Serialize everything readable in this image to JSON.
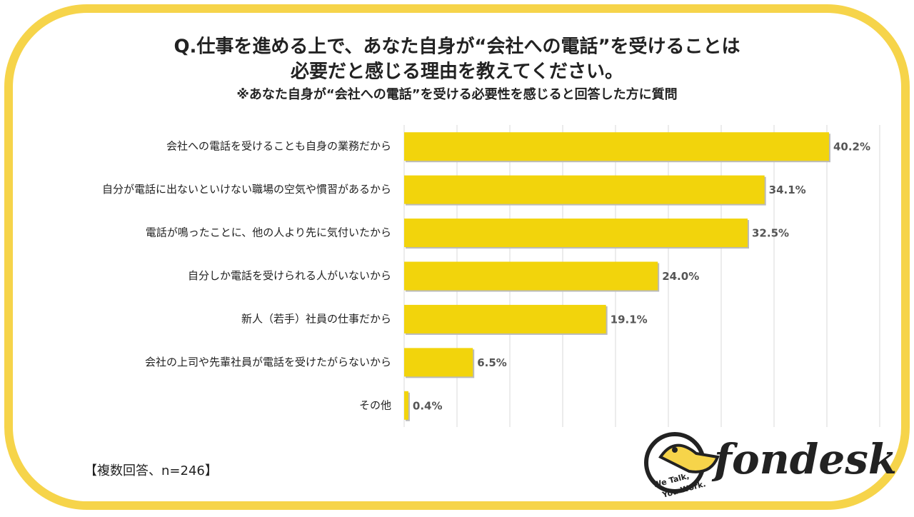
{
  "chart_data": {
    "type": "barh",
    "title": "Q.仕事を進める上で、あなた自身が“会社への電話”を受けることは",
    "title_line2": "必要だと感じる理由を教えてください。",
    "subtitle": "※あなた自身が“会社への電話”を受ける必要性を感じると回答した方に質問",
    "categories": [
      "会社への電話を受けることも自身の業務だから",
      "自分が電話に出ないといけない職場の空気や慣習があるから",
      "電話が鳴ったことに、他の人より先に気付いたから",
      "自分しか電話を受けられる人がいないから",
      "新人（若手）社員の仕事だから",
      "会社の上司や先輩社員が電話を受けたがらないから",
      "その他"
    ],
    "values": [
      40.2,
      34.1,
      32.5,
      24.0,
      19.1,
      6.5,
      0.4
    ],
    "value_labels": [
      "40.2%",
      "34.1%",
      "32.5%",
      "24.0%",
      "19.1%",
      "6.5%",
      "0.4%"
    ],
    "color": "#f2d40c",
    "xlim": [
      0,
      45
    ],
    "xticks": [
      0,
      5,
      10,
      15,
      20,
      25,
      30,
      35,
      40,
      45
    ],
    "grid": true,
    "note": "【複数回答、n=246】",
    "logo": {
      "name": "fondesk",
      "tagline1": "We Talk,",
      "tagline2": "You Work."
    }
  }
}
